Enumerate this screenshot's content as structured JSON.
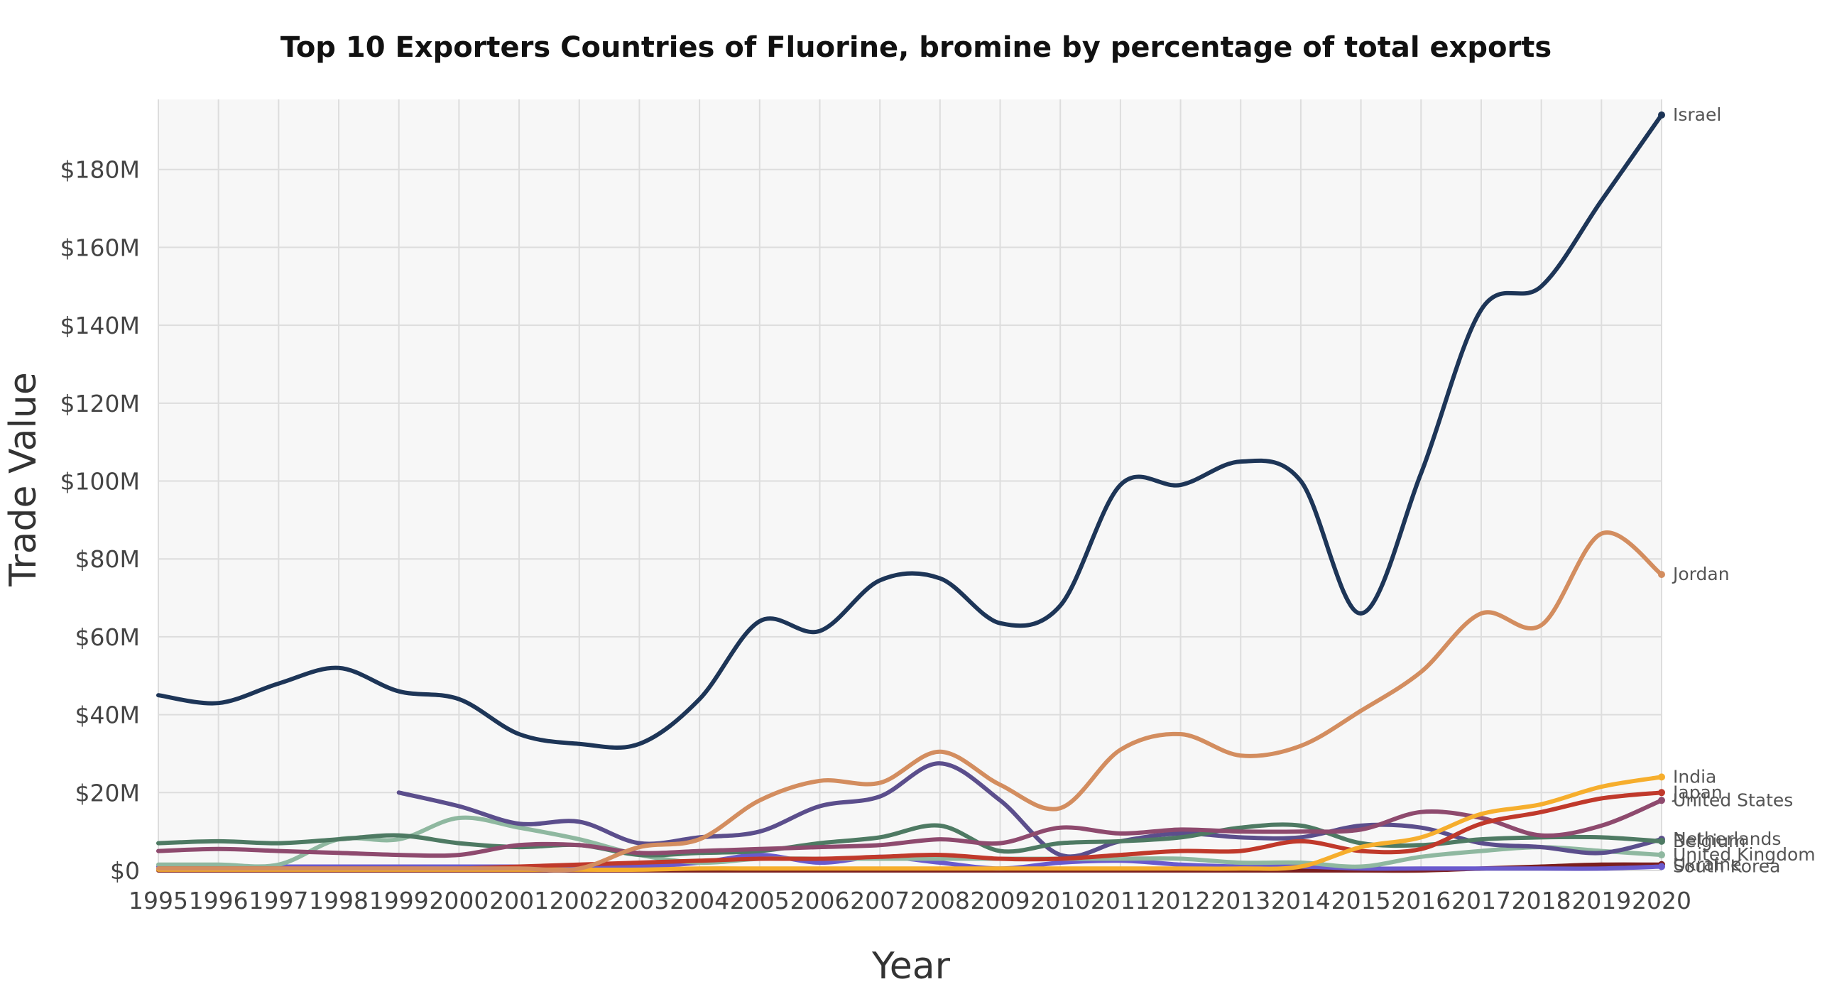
{
  "chart_data": {
    "type": "line",
    "title": "Top 10 Exporters Countries of Fluorine, bromine by percentage of total exports",
    "xlabel": "Year",
    "ylabel": "Trade Value",
    "x": [
      1995,
      1996,
      1997,
      1998,
      1999,
      2000,
      2001,
      2002,
      2003,
      2004,
      2005,
      2006,
      2007,
      2008,
      2009,
      2010,
      2011,
      2012,
      2013,
      2014,
      2015,
      2016,
      2017,
      2018,
      2019,
      2020
    ],
    "x_tick_labels": [
      "1995",
      "1996",
      "1997",
      "1998",
      "1999",
      "2000",
      "2001",
      "2002",
      "2003",
      "2004",
      "2005",
      "2006",
      "2007",
      "2008",
      "2009",
      "2010",
      "2011",
      "2012",
      "2013",
      "2014",
      "2015",
      "2016",
      "2017",
      "2018",
      "2019",
      "2020"
    ],
    "ylim": [
      0,
      198
    ],
    "y_ticks": [
      0,
      20,
      40,
      60,
      80,
      100,
      120,
      140,
      160,
      180
    ],
    "y_tick_labels": [
      "$0",
      "$20M",
      "$40M",
      "$60M",
      "$80M",
      "$100M",
      "$120M",
      "$140M",
      "$160M",
      "$180M"
    ],
    "grid": true,
    "legend": "end-of-line labels",
    "series": [
      {
        "name": "Israel",
        "color": "#1d3557",
        "values": [
          45,
          43,
          48,
          52,
          46,
          44,
          35,
          32.5,
          32.5,
          44,
          64,
          61.5,
          74.5,
          75,
          63.5,
          68,
          99,
          99,
          105,
          100,
          66,
          102,
          144,
          150,
          172,
          194
        ]
      },
      {
        "name": "Jordan",
        "color": "#d38d5f",
        "values": [
          0.5,
          0.5,
          0.5,
          0.5,
          0.5,
          0.5,
          0.5,
          0.5,
          6,
          8,
          18,
          23,
          22.5,
          30.5,
          22,
          16,
          31,
          35,
          29.5,
          32,
          41,
          51,
          66,
          63,
          86.5,
          76
        ]
      },
      {
        "name": "India",
        "color": "#f6ae2d",
        "values": [
          0.2,
          0.2,
          0.2,
          0.2,
          0.2,
          0.2,
          0.2,
          0.2,
          0.2,
          0.5,
          0.5,
          0.5,
          0.5,
          0.5,
          0.5,
          0.5,
          0.5,
          0.5,
          0.5,
          1,
          6,
          8.5,
          14.5,
          17,
          21.5,
          24
        ]
      },
      {
        "name": "Japan",
        "color": "#c0392b",
        "values": [
          0.5,
          0.5,
          0.5,
          0.5,
          0.5,
          0.5,
          1,
          1.5,
          2,
          2.5,
          3,
          3,
          3.5,
          4,
          3,
          3,
          4,
          5,
          5,
          7.5,
          5,
          5.5,
          12,
          15,
          18.5,
          20
        ]
      },
      {
        "name": "United States",
        "color": "#8e4a6e",
        "values": [
          5,
          5.5,
          5,
          4.5,
          4,
          4,
          6.5,
          6.5,
          4.5,
          5,
          5.5,
          6,
          6.5,
          8,
          7,
          11,
          9.5,
          10.5,
          10,
          10,
          10.5,
          15,
          13.5,
          9,
          11.5,
          18
        ]
      },
      {
        "name": "Belgium",
        "color": "#4e7a63",
        "values": [
          7,
          7.5,
          7,
          8,
          9,
          7,
          6,
          6.5,
          4,
          4.5,
          5,
          7,
          8.5,
          11.5,
          5,
          7,
          7.5,
          8.5,
          11,
          11.5,
          7,
          6.5,
          8,
          8.5,
          8.5,
          7.5
        ]
      },
      {
        "name": "Netherlands",
        "color": "#5b4e8c",
        "values": [
          null,
          null,
          null,
          null,
          20,
          16.5,
          12,
          12.5,
          7,
          8.5,
          10,
          16.5,
          19,
          27.5,
          18,
          4,
          7.5,
          9.5,
          8.5,
          8.5,
          11.5,
          11,
          7,
          6,
          4.5,
          8
        ]
      },
      {
        "name": "United Kingdom",
        "color": "#8fb8a0",
        "values": [
          1.5,
          1.5,
          1.5,
          8,
          8,
          13.5,
          11,
          8,
          4,
          2,
          3,
          3,
          3,
          3,
          3,
          3,
          3,
          3,
          2,
          2,
          1,
          3.5,
          5,
          6,
          5,
          4
        ]
      },
      {
        "name": "South Korea",
        "color": "#6a5acd",
        "values": [
          1,
          1,
          1,
          1,
          1,
          1,
          1,
          1,
          1,
          2,
          4,
          2,
          3.5,
          2,
          0.5,
          2,
          2.5,
          1.5,
          1,
          1,
          0.5,
          0.5,
          0.5,
          0.5,
          0.5,
          1
        ]
      },
      {
        "name": "Ukraine",
        "color": "#7b1e1e",
        "values": [
          0,
          0,
          0,
          0,
          0,
          0,
          0,
          0,
          0,
          0,
          0,
          0,
          0,
          0,
          0,
          0,
          0,
          0,
          0,
          0,
          0,
          0,
          0.5,
          1,
          1.5,
          1.5
        ]
      }
    ]
  }
}
